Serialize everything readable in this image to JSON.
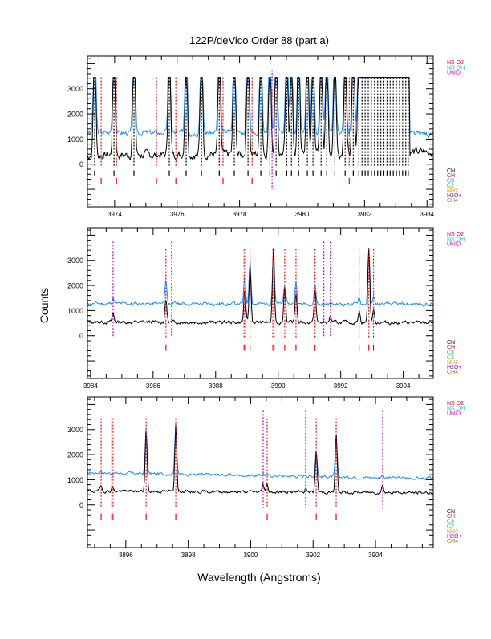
{
  "title": "122P/deVico Order 88 (part a)",
  "xlabel": "Wavelength (Angstroms)",
  "ylabel": "Counts",
  "legend_top": [
    {
      "label": "NS O2",
      "color": "#ff0040"
    },
    {
      "label": "NS OH",
      "color": "#00c8c8"
    },
    {
      "label": "UNID",
      "color": "#c000c0"
    }
  ],
  "legend_bottom": [
    {
      "label": "CN",
      "color": "#000000"
    },
    {
      "label": "CH",
      "color": "#ff0000"
    },
    {
      "label": "C3",
      "color": "#0090ff"
    },
    {
      "label": "C2",
      "color": "#00d000"
    },
    {
      "label": "NH2",
      "color": "#ff9000"
    },
    {
      "label": "H2O+",
      "color": "#8000ff"
    },
    {
      "label": "CH4",
      "color": "#808000"
    }
  ],
  "chart_data": [
    {
      "type": "line",
      "xlim": [
        3973.13,
        3984.2
      ],
      "ylim": [
        -1700,
        4300
      ],
      "xticks": [
        "3974",
        "3976",
        "3978",
        "3980",
        "3982",
        "3984"
      ],
      "yticks": [
        "0",
        "1000",
        "2000",
        "3000"
      ],
      "clip_max": 3450,
      "series": [
        {
          "name": "spectrum-1",
          "color": "#1e8cff",
          "baseline": [
            1250,
            1250
          ],
          "noise": 110,
          "peak_scale": 1.0,
          "seed": 3
        },
        {
          "name": "spectrum-2",
          "color": "#000000",
          "baseline": [
            350,
            450
          ],
          "noise": 170,
          "peak_scale": 1.0,
          "seed": 7
        }
      ],
      "peaks": [
        [
          3973.36,
          5000
        ],
        [
          3973.98,
          5000
        ],
        [
          3974.62,
          5000
        ],
        [
          3975.75,
          5000
        ],
        [
          3976.29,
          4500
        ],
        [
          3976.78,
          5000
        ],
        [
          3977.35,
          5000
        ],
        [
          3977.83,
          5000
        ],
        [
          3978.27,
          5000
        ],
        [
          3978.68,
          5000
        ],
        [
          3978.97,
          4500
        ],
        [
          3979.17,
          5000
        ],
        [
          3979.51,
          5000
        ],
        [
          3979.66,
          4000
        ],
        [
          3979.89,
          5000
        ],
        [
          3980.17,
          5000
        ],
        [
          3980.35,
          4500
        ],
        [
          3980.61,
          5000
        ],
        [
          3980.79,
          4500
        ],
        [
          3981.05,
          5000
        ],
        [
          3981.38,
          5000
        ],
        [
          3981.64,
          5000
        ],
        [
          3981.82,
          5000
        ],
        [
          3981.92,
          5000
        ],
        [
          3982.02,
          5000
        ],
        [
          3982.12,
          5000
        ],
        [
          3982.22,
          5000
        ],
        [
          3982.32,
          5000
        ],
        [
          3982.42,
          5000
        ],
        [
          3982.52,
          5000
        ],
        [
          3982.62,
          5000
        ],
        [
          3982.72,
          5000
        ],
        [
          3982.82,
          5000
        ],
        [
          3982.92,
          5000
        ],
        [
          3983.02,
          5000
        ],
        [
          3983.12,
          5000
        ],
        [
          3983.22,
          5000
        ],
        [
          3983.32,
          5000
        ],
        [
          3983.4,
          5000
        ]
      ],
      "line_markers": [
        {
          "species": "CN",
          "w": [
            3973.36,
            3973.98,
            3974.62,
            3975.75,
            3976.29,
            3976.78,
            3977.35,
            3977.83,
            3978.27,
            3978.68,
            3978.97,
            3979.17,
            3979.51,
            3979.66,
            3979.89,
            3980.17,
            3980.35,
            3980.61,
            3980.79,
            3981.05,
            3981.38,
            3981.64,
            3981.82,
            3981.92,
            3982.02,
            3982.12,
            3982.22,
            3982.32,
            3982.42,
            3982.52,
            3982.62,
            3982.72,
            3982.82,
            3982.92,
            3983.02,
            3983.12,
            3983.22,
            3983.32,
            3983.4
          ]
        },
        {
          "species": "CH",
          "w": [
            3973.57,
            3974.06,
            3975.34,
            3975.96,
            3977.47,
            3978.4,
            3981.51
          ]
        },
        {
          "species": "UNID",
          "w": [
            3979.04
          ]
        }
      ]
    },
    {
      "type": "line",
      "xlim": [
        3983.9,
        3994.96
      ],
      "ylim": [
        -1700,
        4300
      ],
      "xticks": [
        "3984",
        "3986",
        "3988",
        "3990",
        "3992",
        "3994"
      ],
      "yticks": [
        "0",
        "1000",
        "2000",
        "3000"
      ],
      "clip_max": 3500,
      "series": [
        {
          "name": "spectrum-1",
          "color": "#1e8cff",
          "baseline": [
            1280,
            1250
          ],
          "noise": 70,
          "peak_scale": 1.0,
          "seed": 11
        },
        {
          "name": "spectrum-2",
          "color": "#000000",
          "baseline": [
            550,
            520
          ],
          "noise": 70,
          "peak_scale": 1.0,
          "seed": 13
        }
      ],
      "peaks_by_series": [
        [
          [
            3984.72,
            250
          ],
          [
            3986.41,
            950
          ],
          [
            3988.93,
            1000
          ],
          [
            3989.1,
            1800
          ],
          [
            3989.85,
            2200
          ],
          [
            3990.21,
            800
          ],
          [
            3990.57,
            900
          ],
          [
            3991.18,
            800
          ],
          [
            3992.59,
            300
          ],
          [
            3992.9,
            2200
          ],
          [
            3993.05,
            300
          ]
        ],
        [
          [
            3984.72,
            350
          ],
          [
            3986.41,
            900
          ],
          [
            3988.93,
            1300
          ],
          [
            3989.1,
            2300
          ],
          [
            3989.85,
            3000
          ],
          [
            3990.21,
            1400
          ],
          [
            3990.57,
            1200
          ],
          [
            3991.18,
            1300
          ],
          [
            3991.67,
            250
          ],
          [
            3992.59,
            500
          ],
          [
            3992.9,
            3000
          ],
          [
            3993.05,
            500
          ]
        ]
      ],
      "line_markers": [
        {
          "species": "CH",
          "w": [
            3986.41,
            3988.91,
            3988.95,
            3989.1,
            3989.83,
            3989.87,
            3990.21,
            3990.57,
            3991.18,
            3992.59,
            3992.9,
            3993.05
          ]
        },
        {
          "species": "UNID",
          "w": [
            3984.72,
            3986.59,
            3991.46,
            3991.67
          ]
        }
      ]
    },
    {
      "type": "line",
      "xlim": [
        3894.77,
        3905.85
      ],
      "ylim": [
        -1700,
        4300
      ],
      "xticks": [
        "3896",
        "3898",
        "3900",
        "3902",
        "3904"
      ],
      "yticks": [
        "0",
        "1000",
        "2000",
        "3000"
      ],
      "clip_max": 3500,
      "series": [
        {
          "name": "spectrum-1",
          "color": "#1e8cff",
          "baseline": [
            1280,
            1050
          ],
          "noise": 60,
          "peak_scale": 1.0,
          "seed": 17
        },
        {
          "name": "spectrum-2",
          "color": "#000000",
          "baseline": [
            550,
            480
          ],
          "noise": 60,
          "peak_scale": 1.0,
          "seed": 19
        }
      ],
      "peaks_by_series": [
        [
          [
            3895.21,
            80
          ],
          [
            3896.65,
            1800
          ],
          [
            3897.6,
            2100
          ],
          [
            3900.4,
            100
          ],
          [
            3901.76,
            100
          ],
          [
            3902.1,
            1100
          ],
          [
            3902.74,
            1700
          ],
          [
            3904.23,
            150
          ]
        ],
        [
          [
            3895.21,
            200
          ],
          [
            3895.57,
            150
          ],
          [
            3896.65,
            2400
          ],
          [
            3897.6,
            2700
          ],
          [
            3900.4,
            300
          ],
          [
            3900.53,
            300
          ],
          [
            3901.76,
            150
          ],
          [
            3902.1,
            1600
          ],
          [
            3902.74,
            2300
          ],
          [
            3904.23,
            300
          ]
        ]
      ],
      "line_markers": [
        {
          "species": "CH",
          "w": [
            3895.21,
            3895.55,
            3895.59,
            3896.65,
            3897.6,
            3900.53,
            3902.1,
            3902.74
          ]
        },
        {
          "species": "UNID",
          "w": [
            3900.4,
            3901.76,
            3904.23
          ]
        }
      ]
    }
  ]
}
